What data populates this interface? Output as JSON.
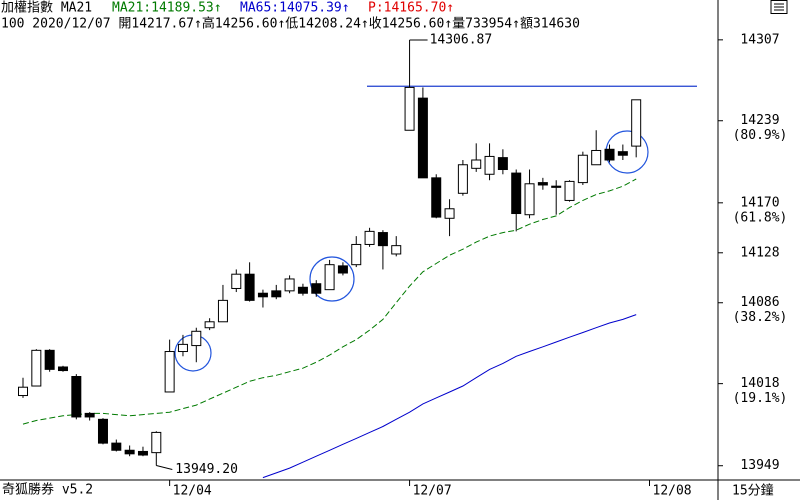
{
  "chart_data": {
    "type": "candlestick",
    "title": "加權指數 MA21",
    "info_line": "100 2020/12/07 開14217.67↑高14256.60↑低14208.24↑收14256.60↑量733954↑額314630",
    "price_label": {
      "text": "P:14165.70↑",
      "color": "#e00000"
    },
    "categories": [
      null,
      null,
      null,
      null,
      null,
      null,
      null,
      null,
      null,
      null,
      null,
      "12/04",
      null,
      null,
      null,
      null,
      null,
      null,
      null,
      null,
      null,
      null,
      null,
      null,
      null,
      null,
      null,
      null,
      null,
      "12/07",
      null,
      null,
      null,
      null,
      null,
      null,
      null,
      null,
      null,
      null,
      null,
      null,
      null,
      null,
      null,
      null,
      null,
      "12/08"
    ],
    "open": [
      14008,
      14016,
      14046,
      14032,
      14024,
      13993,
      13988,
      13968,
      13962,
      13961,
      13960,
      14011,
      14045,
      14050,
      14065,
      14070,
      14098,
      14110,
      14094,
      14096,
      14096,
      14099,
      14102,
      14097,
      14117,
      14118,
      14135,
      14145,
      14127,
      14231,
      14258,
      14191,
      14157,
      14178,
      14199,
      14194,
      14208,
      14195,
      14160,
      14187,
      14184,
      14172,
      14187,
      14202,
      14215,
      14213,
      14217.67,
      null
    ],
    "close": [
      14015,
      14046,
      14030,
      14029,
      13990,
      13990,
      13968,
      13962,
      13959,
      13958,
      13977,
      14045,
      14051,
      14062,
      14070,
      14088,
      14110,
      14088,
      14091,
      14091,
      14106,
      14094,
      14094,
      14118,
      14111,
      14135,
      14146,
      14134,
      14134,
      14267,
      14191,
      14158,
      14165,
      14202,
      14206,
      14209,
      14198,
      14161,
      14186,
      14185,
      14183,
      14188,
      14210,
      14214,
      14206,
      14210,
      14256.6,
      null
    ],
    "high": [
      14023,
      14047,
      14047,
      14033,
      14026,
      13994,
      13989,
      13971,
      13966,
      13965,
      13978,
      14055,
      14059,
      14065,
      14073,
      14101,
      14114,
      14120,
      14097,
      14101,
      14109,
      14102,
      14105,
      14122,
      14120,
      14142,
      14149,
      14147,
      14142,
      14306.87,
      14267,
      14194,
      14173,
      14206,
      14220,
      14220,
      14215,
      14198,
      14198,
      14191,
      14189,
      14189,
      14213,
      14231,
      14219,
      14219,
      14256.6,
      null
    ],
    "low": [
      14006,
      14016,
      14028,
      14028,
      13988,
      13987,
      13967,
      13961,
      13957,
      13957,
      13949.2,
      14011,
      14041,
      14036,
      14063,
      14070,
      14095,
      14087,
      14082,
      14089,
      14094,
      14092,
      14091,
      14097,
      14109,
      14116,
      14133,
      14114,
      14125,
      14231,
      14191,
      14157,
      14142,
      14176,
      14196,
      14189,
      14194,
      14146,
      14157,
      14181,
      14160,
      14171,
      14185,
      14202,
      14204,
      14206,
      14208.24,
      null
    ],
    "up_color": "#ffffff",
    "down_color": "#000000",
    "extreme_labels": {
      "high": "14306.87",
      "low": "13949.20"
    },
    "series": [
      {
        "name": "MA21:14189.53↑",
        "color": "#007a00",
        "dashed": true,
        "values": [
          13984,
          13987,
          13989,
          13991,
          13992,
          13993,
          13993,
          13992,
          13991,
          13992,
          13993,
          13994,
          13997,
          14000,
          14005,
          14010,
          14015,
          14020,
          14023,
          14025,
          14028,
          14031,
          14036,
          14042,
          14049,
          14055,
          14063,
          14072,
          14086,
          14100,
          14112,
          14119,
          14126,
          14131,
          14137,
          14142,
          14145,
          14147,
          14152,
          14156,
          14159,
          14166,
          14172,
          14177,
          14180,
          14184,
          14190,
          null
        ]
      },
      {
        "name": "MA65:14075.39↑",
        "color": "#0000cc",
        "dashed": false,
        "values": [
          null,
          null,
          null,
          null,
          null,
          null,
          null,
          null,
          null,
          null,
          null,
          null,
          null,
          null,
          null,
          null,
          null,
          null,
          13939,
          13943,
          13947,
          13952,
          13957,
          13962,
          13967,
          13972,
          13977,
          13982,
          13988,
          13994,
          14001,
          14006,
          14011,
          14016,
          14023,
          14030,
          14035,
          14041,
          14045,
          14049,
          14053,
          14057,
          14061,
          14065,
          14069,
          14072,
          14076,
          null
        ]
      }
    ],
    "hline": {
      "value": 14268,
      "color": "#1f3fcf"
    },
    "ylim": [
      13937,
      14322
    ],
    "yticks": [
      14307,
      14239,
      14170,
      14128,
      14086,
      14018,
      13949
    ],
    "fib_levels": [
      {
        "value": 14239,
        "label": "(80.9%)"
      },
      {
        "value": 14170,
        "label": "(61.8%)"
      },
      {
        "value": 14086,
        "label": "(38.2%)"
      },
      {
        "value": 14018,
        "label": "(19.1%)"
      }
    ],
    "footer_left": "奇狐勝券 v5.2",
    "footer_right": "15分鐘"
  }
}
